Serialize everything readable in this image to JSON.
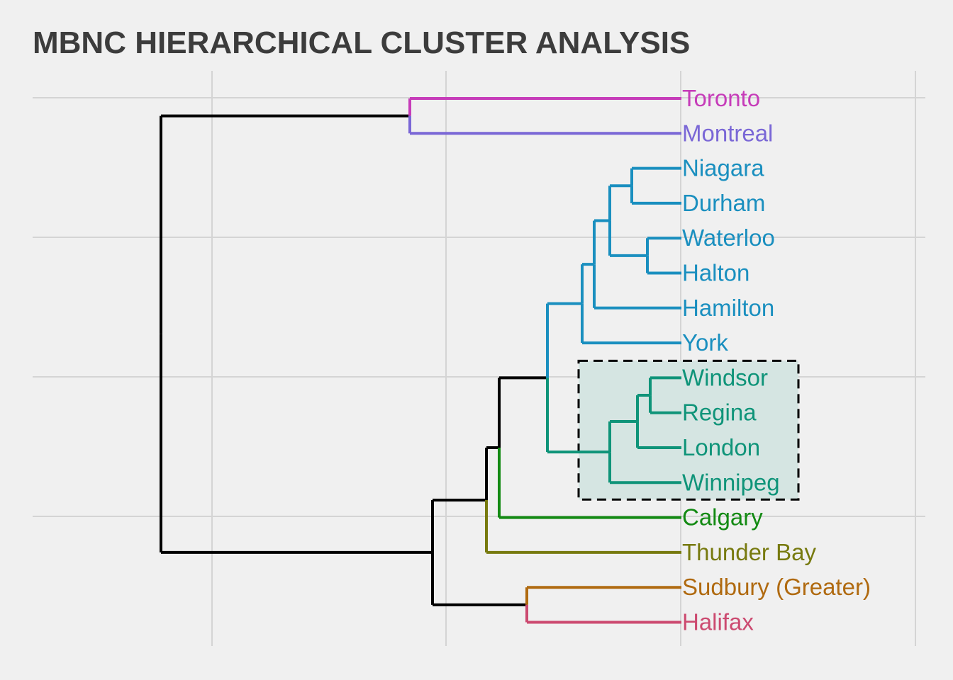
{
  "title": "MBNC HIERARCHICAL CLUSTER ANALYSIS",
  "colors": {
    "background": "#f0f0f0",
    "grid": "#d4d4d4",
    "title": "#3c3c3c",
    "root_branch": "#000000",
    "highlight_fill": "#d5e5e2",
    "highlight_border": "#000000"
  },
  "chart_data": {
    "type": "dendrogram",
    "orientation": "horizontal, leaves on right",
    "grid": true,
    "leaves": [
      {
        "label": "Toronto",
        "color": "#c63cb9"
      },
      {
        "label": "Montreal",
        "color": "#7a67d6"
      },
      {
        "label": "Niagara",
        "color": "#1a8fbf"
      },
      {
        "label": "Durham",
        "color": "#1a8fbf"
      },
      {
        "label": "Waterloo",
        "color": "#1a8fbf"
      },
      {
        "label": "Halton",
        "color": "#1a8fbf"
      },
      {
        "label": "Hamilton",
        "color": "#1a8fbf"
      },
      {
        "label": "York",
        "color": "#1a8fbf"
      },
      {
        "label": "Windsor",
        "color": "#0f9479"
      },
      {
        "label": "Regina",
        "color": "#0f9479"
      },
      {
        "label": "London",
        "color": "#0f9479"
      },
      {
        "label": "Winnipeg",
        "color": "#0f9479"
      },
      {
        "label": "Calgary",
        "color": "#138a13"
      },
      {
        "label": "Thunder Bay",
        "color": "#777a0f"
      },
      {
        "label": "Sudbury (Greater)",
        "color": "#b06a10"
      },
      {
        "label": "Halifax",
        "color": "#cc4a70"
      }
    ],
    "highlighted_cluster": [
      "Windsor",
      "Regina",
      "London",
      "Winnipeg"
    ]
  }
}
